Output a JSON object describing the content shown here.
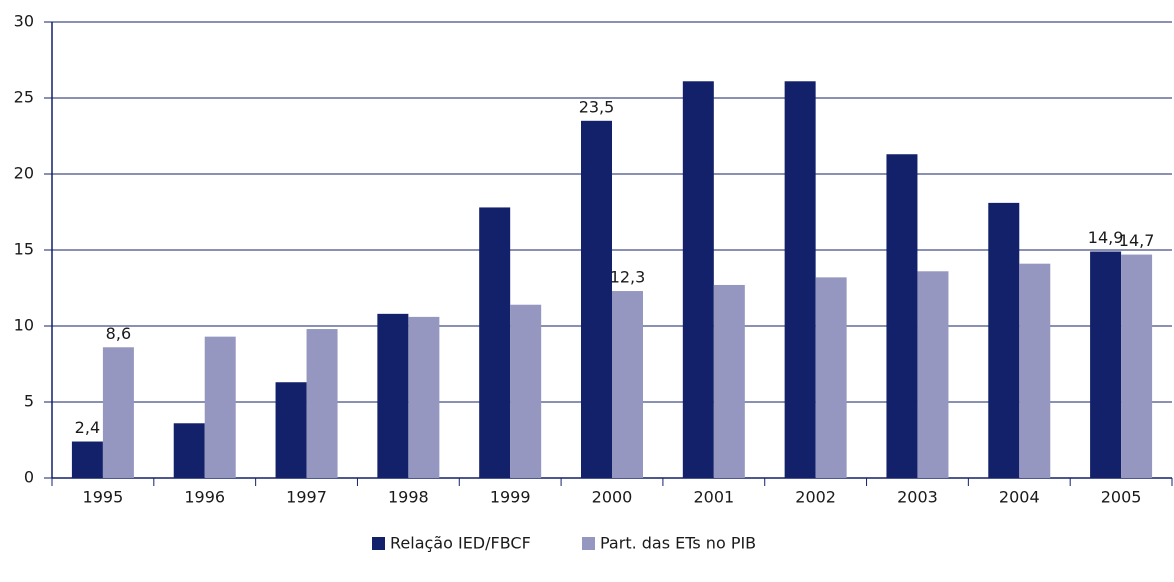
{
  "chart_data": {
    "type": "bar",
    "categories": [
      "1995",
      "1996",
      "1997",
      "1998",
      "1999",
      "2000",
      "2001",
      "2002",
      "2003",
      "2004",
      "2005"
    ],
    "series": [
      {
        "name": "Relação IED/FBCF",
        "color": "#13216a",
        "values": [
          2.4,
          3.6,
          6.3,
          10.8,
          17.8,
          23.5,
          26.1,
          26.1,
          21.3,
          18.1,
          14.9
        ],
        "value_labels": [
          "2,4",
          null,
          null,
          null,
          null,
          "23,5",
          null,
          null,
          null,
          null,
          "14,9"
        ]
      },
      {
        "name": "Part. das ETs no PIB",
        "color": "#9597c0",
        "values": [
          8.6,
          9.3,
          9.8,
          10.6,
          11.4,
          12.3,
          12.7,
          13.2,
          13.6,
          14.1,
          14.7
        ],
        "value_labels": [
          "8,6",
          null,
          null,
          null,
          null,
          "12,3",
          null,
          null,
          null,
          null,
          "14,7"
        ]
      }
    ],
    "ylim": [
      0,
      30
    ],
    "yticks": [
      0,
      5,
      10,
      15,
      20,
      25,
      30
    ],
    "grid": true,
    "legend": "bottom"
  }
}
